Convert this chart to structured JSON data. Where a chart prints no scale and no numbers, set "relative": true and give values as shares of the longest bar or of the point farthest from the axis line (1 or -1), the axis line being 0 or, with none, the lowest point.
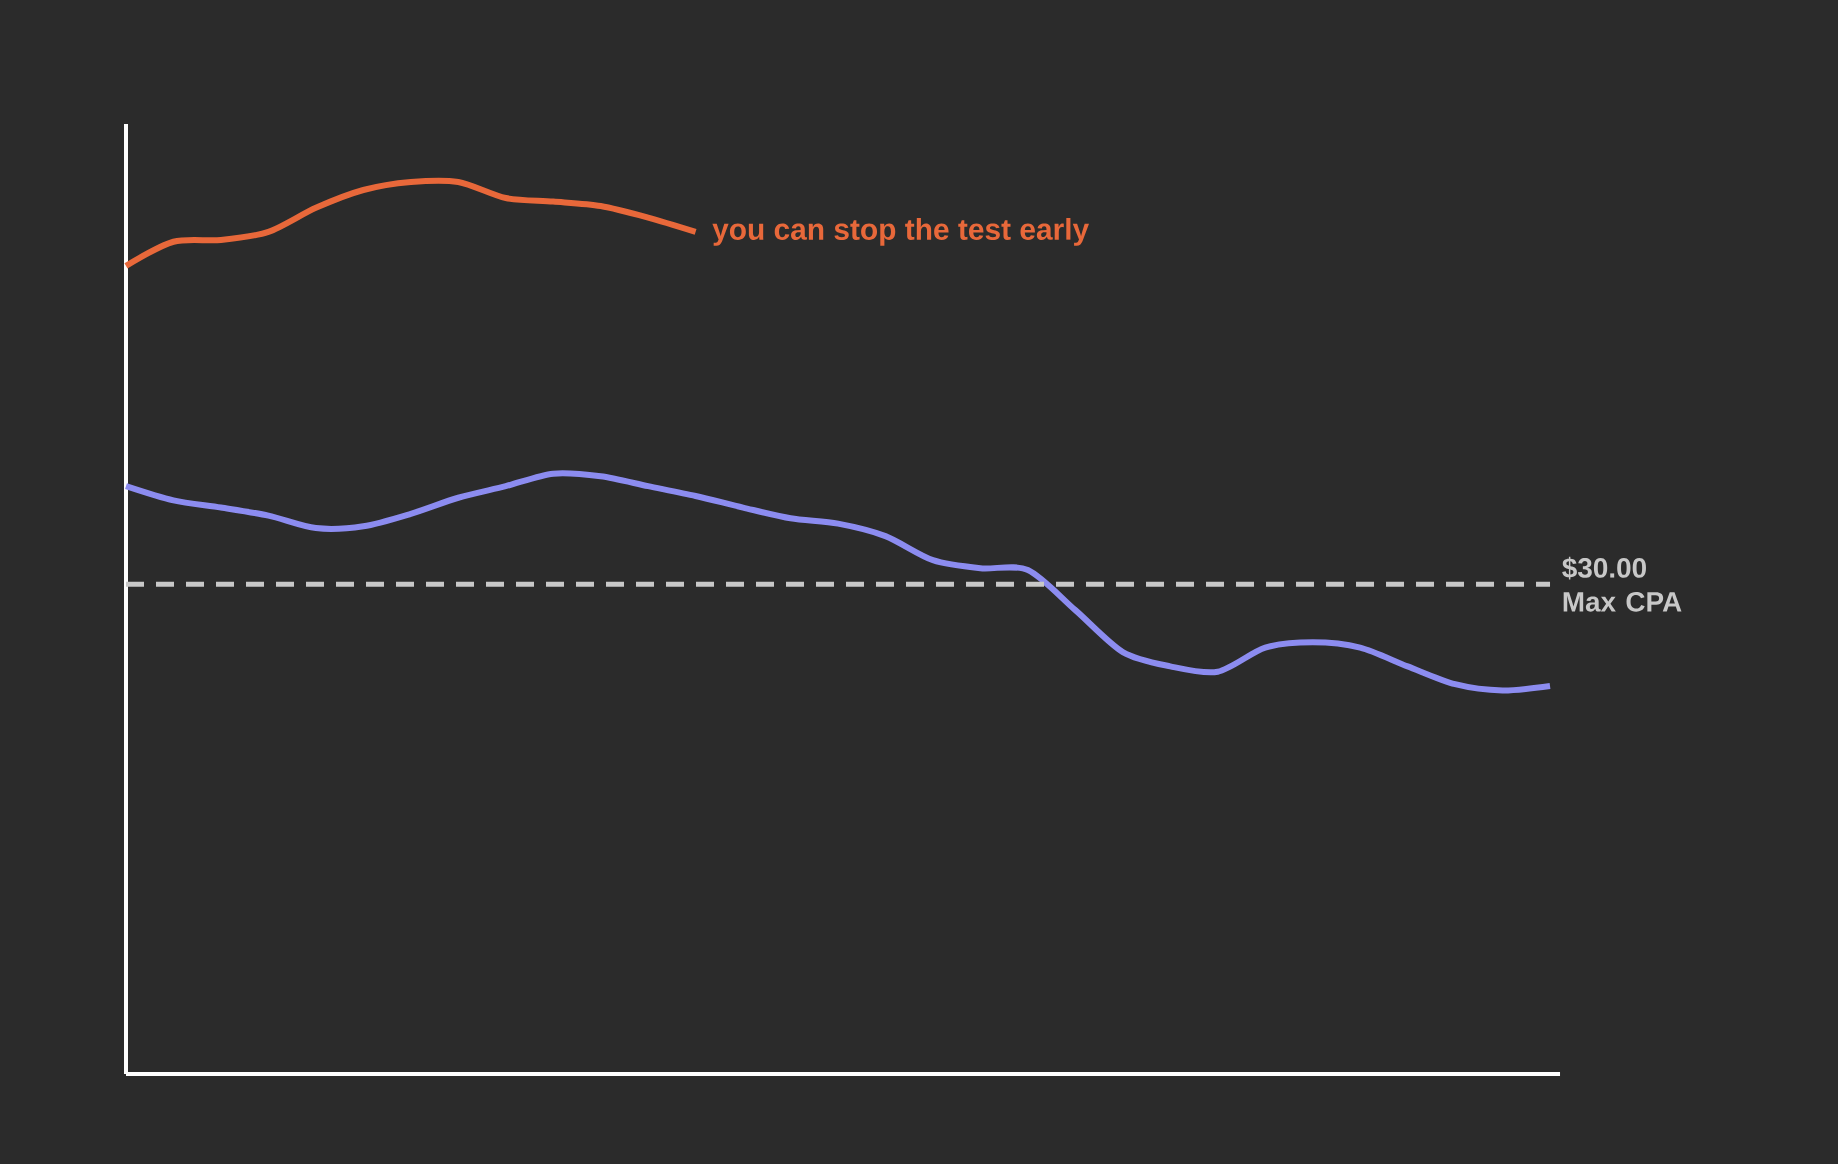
{
  "chart_data": {
    "type": "line",
    "relative": true,
    "categories": [
      null,
      null,
      null,
      null,
      null,
      null,
      null,
      null,
      null,
      null,
      null,
      null,
      null,
      null,
      null,
      null,
      null,
      null,
      null,
      null,
      null,
      null,
      null,
      null,
      null,
      null,
      null,
      null,
      null,
      null,
      null
    ],
    "series": [
      {
        "color": "#e8683a",
        "values": [
          0.906,
          0.933,
          0.935,
          0.944,
          0.971,
          0.991,
          1.0,
          1.0,
          0.982,
          0.978,
          0.973,
          0.96,
          0.944,
          null,
          null,
          null,
          null,
          null,
          null,
          null,
          null,
          null,
          null,
          null,
          null,
          null,
          null,
          null,
          null,
          null,
          null
        ]
      },
      {
        "color": "#8c8cf0",
        "values": [
          0.659,
          0.643,
          0.635,
          0.626,
          0.612,
          0.614,
          0.628,
          0.646,
          0.659,
          0.673,
          0.67,
          0.659,
          0.648,
          0.635,
          0.623,
          0.617,
          0.603,
          0.576,
          0.567,
          0.565,
          0.52,
          0.473,
          0.457,
          0.451,
          0.478,
          0.484,
          0.478,
          0.457,
          0.437,
          0.43,
          0.435
        ]
      }
    ],
    "ref_lines": [
      {
        "axis": "y",
        "value": 0.549,
        "label": "$30.00 Max CPA",
        "color": "#c8c8c8",
        "line_style": "dashed"
      }
    ],
    "annotations": [
      "you can stop the test early"
    ]
  }
}
